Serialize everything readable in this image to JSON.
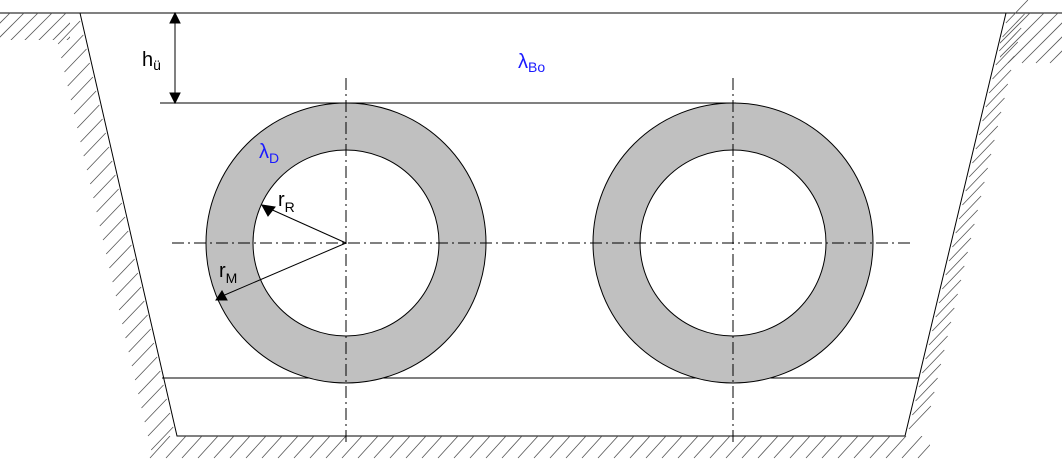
{
  "labels": {
    "overburden": {
      "main": "h",
      "sub": "ü"
    },
    "soil_conductivity": {
      "main": "λ",
      "sub": "Bo"
    },
    "insulation_conductivity": {
      "main": "λ",
      "sub": "D"
    },
    "inner_radius": {
      "main": "r",
      "sub": "R"
    },
    "outer_radius": {
      "main": "r",
      "sub": "M"
    }
  },
  "colors": {
    "insulation_fill": "#c0c0c0",
    "symbol_blue": "#1a1aff",
    "line": "#000000"
  }
}
